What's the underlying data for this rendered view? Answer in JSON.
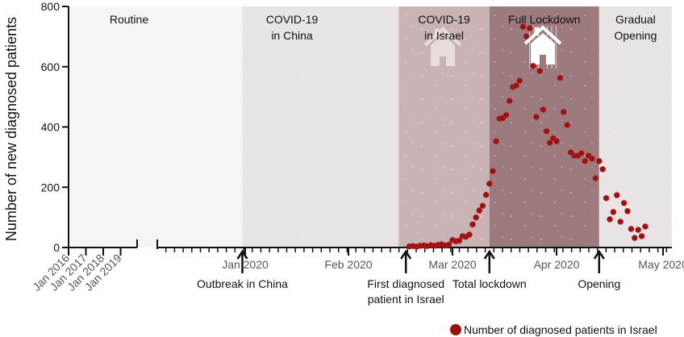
{
  "chart_data": {
    "type": "scatter",
    "title": "",
    "xlabel": "",
    "ylabel": "Number of new diagnosed patients",
    "ylim": [
      0,
      800
    ],
    "yticks": [
      0,
      200,
      400,
      600,
      800
    ],
    "grid": false,
    "legend": {
      "position": "bottom-right",
      "entries": [
        {
          "label": "Number of diagnosed patients in Israel",
          "color": "#9b1111"
        }
      ]
    },
    "x_break": true,
    "early_ticks": [
      "Jan 2016",
      "Jan 2017",
      "Jan 2018",
      "Jan 2019"
    ],
    "month_ticks": [
      {
        "label": "Jan 2020",
        "date": "2020-01-01"
      },
      {
        "label": "Feb 2020",
        "date": "2020-02-01"
      },
      {
        "label": "Mar 2020",
        "date": "2020-03-01"
      },
      {
        "label": "Apr 2020",
        "date": "2020-04-01"
      },
      {
        "label": "May 2020",
        "date": "2020-05-01"
      }
    ],
    "xrange": [
      "2019-12-01",
      "2020-05-04"
    ],
    "regions": [
      {
        "name": "Routine",
        "lines": [
          "Routine"
        ],
        "start": "early",
        "end": "2019-12-31",
        "color": "#f4f5f7"
      },
      {
        "name": "COVID-19 in China",
        "lines": [
          "COVID-19",
          "in China"
        ],
        "start": "2019-12-31",
        "end": "2020-02-15",
        "color": "#e8e3e4"
      },
      {
        "name": "COVID-19 in Israel",
        "lines": [
          "COVID-19",
          "in Israel"
        ],
        "start": "2020-02-15",
        "end": "2020-03-12",
        "color": "#c9b3b5",
        "icon": "house-icon"
      },
      {
        "name": "Full Lockdown",
        "lines": [
          "Full Lockdown"
        ],
        "start": "2020-03-12",
        "end": "2020-04-13",
        "color": "#9d7a7e",
        "icon": "house-lockdown-icon"
      },
      {
        "name": "Gradual Opening",
        "lines": [
          "Gradual",
          "Opening"
        ],
        "start": "2020-04-13",
        "end": "2020-05-04",
        "color": "#e8e4e6"
      }
    ],
    "annotations": [
      {
        "lines": [
          "Outbreak in China"
        ],
        "date": "2019-12-31"
      },
      {
        "lines": [
          "First diagnosed",
          "patient in Israel"
        ],
        "date": "2020-02-17"
      },
      {
        "lines": [
          "Total lockdown"
        ],
        "date": "2020-03-12"
      },
      {
        "lines": [
          "Opening"
        ],
        "date": "2020-04-13"
      }
    ],
    "series": [
      {
        "name": "Number of diagnosed patients in Israel",
        "color": "#9b1111",
        "points": [
          [
            "2020-02-18",
            1
          ],
          [
            "2020-02-19",
            2
          ],
          [
            "2020-02-20",
            0
          ],
          [
            "2020-02-21",
            3
          ],
          [
            "2020-02-22",
            4
          ],
          [
            "2020-02-23",
            2
          ],
          [
            "2020-02-24",
            5
          ],
          [
            "2020-02-25",
            3
          ],
          [
            "2020-02-26",
            6
          ],
          [
            "2020-02-27",
            8
          ],
          [
            "2020-02-28",
            4
          ],
          [
            "2020-02-29",
            7
          ],
          [
            "2020-03-01",
            22
          ],
          [
            "2020-03-02",
            18
          ],
          [
            "2020-03-03",
            20
          ],
          [
            "2020-03-04",
            35
          ],
          [
            "2020-03-05",
            33
          ],
          [
            "2020-03-06",
            40
          ],
          [
            "2020-03-07",
            74
          ],
          [
            "2020-03-08",
            97
          ],
          [
            "2020-03-09",
            120
          ],
          [
            "2020-03-10",
            136
          ],
          [
            "2020-03-11",
            172
          ],
          [
            "2020-03-12",
            209
          ],
          [
            "2020-03-13",
            251
          ],
          [
            "2020-03-14",
            350
          ],
          [
            "2020-03-15",
            425
          ],
          [
            "2020-03-16",
            427
          ],
          [
            "2020-03-17",
            437
          ],
          [
            "2020-03-18",
            484
          ],
          [
            "2020-03-19",
            530
          ],
          [
            "2020-03-20",
            535
          ],
          [
            "2020-03-21",
            551
          ],
          [
            "2020-03-22",
            730
          ],
          [
            "2020-03-23",
            698
          ],
          [
            "2020-03-24",
            725
          ],
          [
            "2020-03-25",
            600
          ],
          [
            "2020-03-26",
            431
          ],
          [
            "2020-03-27",
            583
          ],
          [
            "2020-03-28",
            455
          ],
          [
            "2020-03-29",
            383
          ],
          [
            "2020-03-30",
            345
          ],
          [
            "2020-03-31",
            360
          ],
          [
            "2020-04-01",
            350
          ],
          [
            "2020-04-02",
            560
          ],
          [
            "2020-04-03",
            447
          ],
          [
            "2020-04-04",
            404
          ],
          [
            "2020-04-05",
            313
          ],
          [
            "2020-04-06",
            302
          ],
          [
            "2020-04-07",
            302
          ],
          [
            "2020-04-08",
            310
          ],
          [
            "2020-04-09",
            284
          ],
          [
            "2020-04-10",
            302
          ],
          [
            "2020-04-11",
            292
          ],
          [
            "2020-04-12",
            227
          ],
          [
            "2020-04-13",
            284
          ],
          [
            "2020-04-14",
            257
          ],
          [
            "2020-04-15",
            161
          ],
          [
            "2020-04-16",
            91
          ],
          [
            "2020-04-17",
            115
          ],
          [
            "2020-04-18",
            171
          ],
          [
            "2020-04-19",
            83
          ],
          [
            "2020-04-20",
            145
          ],
          [
            "2020-04-21",
            118
          ],
          [
            "2020-04-22",
            59
          ],
          [
            "2020-04-23",
            29
          ],
          [
            "2020-04-24",
            56
          ],
          [
            "2020-04-25",
            35
          ],
          [
            "2020-04-26",
            67
          ]
        ]
      }
    ]
  }
}
